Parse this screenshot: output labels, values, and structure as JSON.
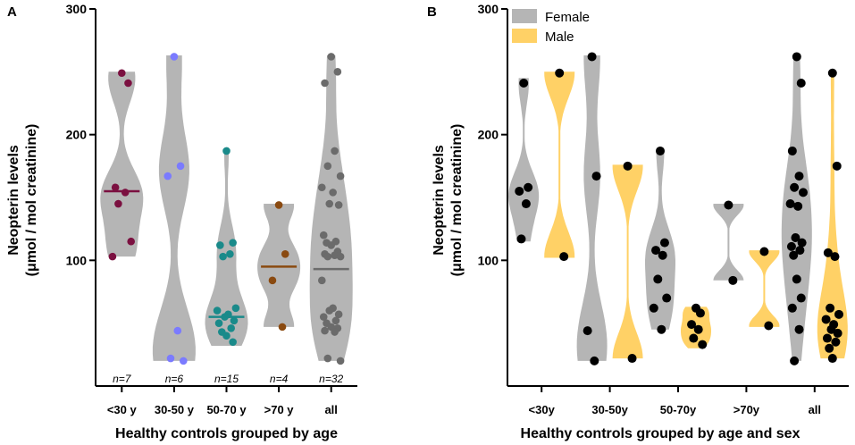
{
  "colors": {
    "violin": "#b5b5b5",
    "female": "#b5b5b5",
    "male": "#ffd166",
    "points_b": "#000000"
  },
  "chart_data": [
    {
      "panel": "A",
      "type": "violin",
      "xlabel": "Healthy controls grouped by age",
      "ylabel": [
        "Neopterin levels",
        "(μmol / mol creatinine)"
      ],
      "ylim": [
        0,
        300
      ],
      "yticks": [
        100,
        200,
        300
      ],
      "categories": [
        "<30 y",
        "30-50 y",
        "50-70 y",
        ">70 y",
        "all"
      ],
      "n_labels": [
        "n=7",
        "n=6",
        "n=15",
        "n=4",
        "n=32"
      ],
      "groups": [
        {
          "color": "#7b1040",
          "median": 155,
          "range": [
            103,
            250
          ],
          "points": [
            249,
            241,
            158,
            154,
            145,
            115,
            103
          ]
        },
        {
          "color": "#7b7bff",
          "median": null,
          "range": [
            20,
            263
          ],
          "points": [
            262,
            175,
            167,
            44,
            22,
            20
          ]
        },
        {
          "color": "#1a8a8a",
          "median": 55,
          "range": [
            32,
            186
          ],
          "points": [
            187,
            114,
            112,
            105,
            103,
            62,
            60,
            57,
            55,
            52,
            50,
            46,
            43,
            40,
            35
          ]
        },
        {
          "color": "#8a4a10",
          "median": 95,
          "range": [
            47,
            145
          ],
          "points": [
            144,
            105,
            84,
            47
          ]
        },
        {
          "color": "#6b6b6b",
          "median": 93,
          "range": [
            20,
            263
          ],
          "points": [
            262,
            250,
            241,
            187,
            175,
            167,
            158,
            154,
            145,
            144,
            120,
            115,
            114,
            112,
            107,
            105,
            104,
            103,
            103,
            84,
            62,
            60,
            57,
            55,
            52,
            50,
            47,
            46,
            44,
            43,
            22,
            20
          ]
        }
      ]
    },
    {
      "panel": "B",
      "type": "violin",
      "xlabel": "Healthy controls grouped by age and sex",
      "ylabel": [
        "Neopterin levels",
        "(μmol / mol creatinine)"
      ],
      "ylim": [
        0,
        300
      ],
      "yticks": [
        100,
        200,
        300
      ],
      "categories": [
        "<30y",
        "30-50y",
        "50-70y",
        ">70y",
        "all"
      ],
      "legend": [
        {
          "name": "Female",
          "color": "#b5b5b5"
        },
        {
          "name": "Male",
          "color": "#ffd166"
        }
      ],
      "series": [
        {
          "name": "Female",
          "groups": [
            {
              "range": [
                115,
                245
              ],
              "points": [
                241,
                158,
                155,
                145,
                117
              ]
            },
            {
              "range": [
                20,
                263
              ],
              "points": [
                262,
                167,
                44,
                20
              ]
            },
            {
              "range": [
                45,
                188
              ],
              "points": [
                187,
                114,
                108,
                104,
                85,
                70,
                62,
                45
              ]
            },
            {
              "range": [
                84,
                145
              ],
              "points": [
                144,
                84
              ]
            },
            {
              "range": [
                20,
                263
              ],
              "points": [
                262,
                241,
                187,
                167,
                158,
                154,
                145,
                143,
                118,
                114,
                111,
                108,
                104,
                85,
                70,
                62,
                45,
                20
              ]
            }
          ]
        },
        {
          "name": "Male",
          "groups": [
            {
              "range": [
                102,
                250
              ],
              "points": [
                249,
                103
              ]
            },
            {
              "range": [
                22,
                176
              ],
              "points": [
                175,
                22
              ]
            },
            {
              "range": [
                30,
                63
              ],
              "points": [
                62,
                58,
                49,
                45,
                38,
                33
              ]
            },
            {
              "range": [
                47,
                108
              ],
              "points": [
                107,
                48
              ]
            },
            {
              "range": [
                22,
                250
              ],
              "points": [
                249,
                175,
                106,
                103,
                62,
                57,
                53,
                49,
                45,
                42,
                38,
                35,
                30,
                22
              ]
            }
          ]
        }
      ]
    }
  ]
}
